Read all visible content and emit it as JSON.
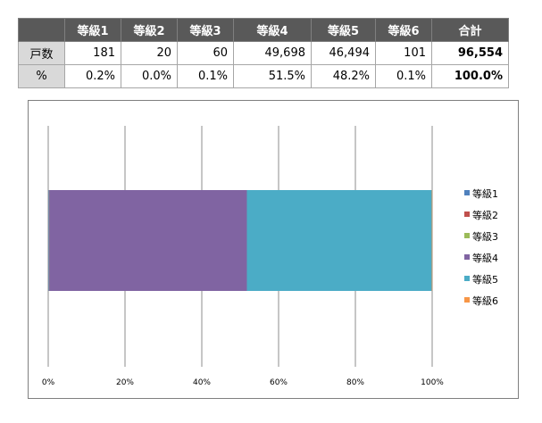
{
  "table": {
    "headers": [
      "",
      "等級1",
      "等級2",
      "等級3",
      "等級4",
      "等級5",
      "等級6",
      "合計"
    ],
    "rows": [
      {
        "label": "戸数",
        "cells": [
          "181",
          "20",
          "60",
          "49,698",
          "46,494",
          "101"
        ],
        "total": "96,554"
      },
      {
        "label": "%",
        "cells": [
          "0.2%",
          "0.0%",
          "0.1%",
          "51.5%",
          "48.2%",
          "0.1%"
        ],
        "total": "100.0%"
      }
    ]
  },
  "chart_data": {
    "type": "bar",
    "orientation": "horizontal",
    "stacked": "percent",
    "categories": [
      ""
    ],
    "series": [
      {
        "name": "等級1",
        "values": [
          181
        ],
        "color": "#4f81bd"
      },
      {
        "name": "等級2",
        "values": [
          20
        ],
        "color": "#c0504d"
      },
      {
        "name": "等級3",
        "values": [
          60
        ],
        "color": "#9bbb59"
      },
      {
        "name": "等級4",
        "values": [
          49698
        ],
        "color": "#8064a2"
      },
      {
        "name": "等級5",
        "values": [
          46494
        ],
        "color": "#4bacc6"
      },
      {
        "name": "等級6",
        "values": [
          101
        ],
        "color": "#f79646"
      }
    ],
    "xticks": [
      "0%",
      "20%",
      "40%",
      "60%",
      "80%",
      "100%"
    ],
    "xlim": [
      0,
      100
    ],
    "grid": true,
    "legend": "right"
  }
}
